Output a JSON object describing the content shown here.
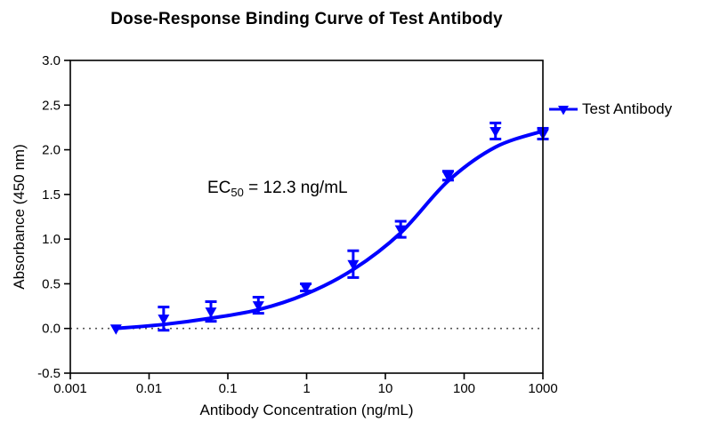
{
  "chart_data": {
    "type": "scatter",
    "subtype": "dose-response-curve-with-fit",
    "title": "Dose-Response Binding Curve of Test Antibody",
    "xlabel": "Antibody Concentration (ng/mL)",
    "ylabel": "Absorbance (450 nm)",
    "x_scale": "log",
    "xlim": [
      0.001,
      1000
    ],
    "ylim": [
      -0.5,
      3.0
    ],
    "x_tick_values": [
      0.001,
      0.01,
      0.1,
      1,
      10,
      100,
      1000
    ],
    "x_tick_labels": [
      "0.001",
      "0.01",
      "0.1",
      "1",
      "10",
      "100",
      "1000"
    ],
    "y_tick_values": [
      -0.5,
      0,
      0.5,
      1,
      1.5,
      2,
      2.5,
      3
    ],
    "y_tick_labels": [
      "-0.5",
      "0.0",
      "0.5",
      "1.0",
      "1.5",
      "2.0",
      "2.5",
      "3.0"
    ],
    "grid": false,
    "axis_color": "#000000",
    "accent_color": "#0000FF",
    "baseline": {
      "y": 0.0,
      "style": "dotted",
      "color": "#555555"
    },
    "series": [
      {
        "name": "Test Antibody",
        "color": "#0000FF",
        "marker": "triangle-down",
        "points": [
          {
            "x": 0.0038,
            "y": 0.0,
            "err": 0.02
          },
          {
            "x": 0.0153,
            "y": 0.11,
            "err": 0.13
          },
          {
            "x": 0.061,
            "y": 0.19,
            "err": 0.11
          },
          {
            "x": 0.2441,
            "y": 0.26,
            "err": 0.09
          },
          {
            "x": 0.9766,
            "y": 0.46,
            "err": 0.04
          },
          {
            "x": 3.906,
            "y": 0.72,
            "err": 0.15
          },
          {
            "x": 15.63,
            "y": 1.11,
            "err": 0.09
          },
          {
            "x": 62.5,
            "y": 1.71,
            "err": 0.05
          },
          {
            "x": 250,
            "y": 2.21,
            "err": 0.09
          },
          {
            "x": 1000,
            "y": 2.18,
            "err": 0.06
          }
        ],
        "fit_curve": [
          [
            0.0038,
            0.0
          ],
          [
            0.0153,
            0.045
          ],
          [
            0.061,
            0.115
          ],
          [
            0.2441,
            0.21
          ],
          [
            0.9766,
            0.385
          ],
          [
            3.906,
            0.66
          ],
          [
            15.63,
            1.07
          ],
          [
            62.5,
            1.65
          ],
          [
            250,
            2.03
          ],
          [
            1000,
            2.21
          ]
        ]
      }
    ],
    "annotation": {
      "prefix": "EC",
      "sub": "50",
      "suffix": " = 12.3 ng/mL"
    },
    "legend": {
      "label": "Test Antibody",
      "position": "outside-right"
    }
  }
}
